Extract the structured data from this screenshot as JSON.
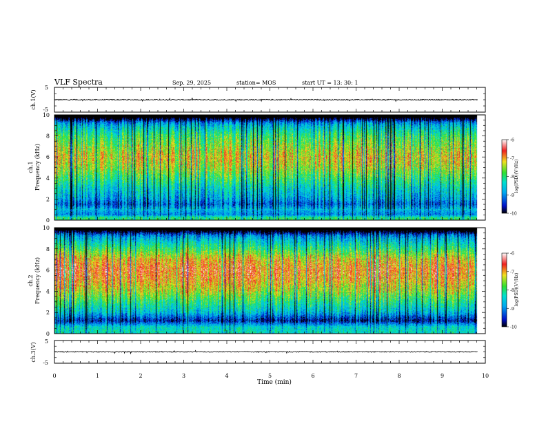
{
  "header": {
    "title": "VLF Spectra",
    "date": "Sep. 29, 2025",
    "station": "station= MOS",
    "start": "start  UT =   13: 30: 1"
  },
  "colors": {
    "black": "#000000",
    "blue": "#0010c8",
    "cyan": "#00d8e0",
    "green": "#30e030",
    "yellow": "#f0e020",
    "red": "#f02020",
    "background": "#ffffff"
  },
  "chart_data": [
    {
      "type": "line",
      "id": "ch1-waveform",
      "ylabel": "ch.1(V)",
      "ylim": [
        -5,
        5
      ],
      "yticks": [
        "5",
        "-5"
      ],
      "xlim": [
        0,
        10
      ],
      "series": [
        {
          "name": "ch.1 voltage",
          "mean": 0,
          "description_values": [
            0
          ]
        }
      ]
    },
    {
      "type": "heatmap",
      "id": "ch1-spectrogram",
      "ylabel_line1": "ch.1",
      "ylabel_line2": "Frequency (kHz)",
      "ylim": [
        0,
        10
      ],
      "yticks": [
        "0",
        "2",
        "4",
        "6",
        "8",
        "10"
      ],
      "xlim": [
        0,
        9.8
      ],
      "band_profile_log_psd": [
        {
          "f": 0.2,
          "v": -8.0
        },
        {
          "f": 0.5,
          "v": -9.0
        },
        {
          "f": 1.0,
          "v": -8.6
        },
        {
          "f": 1.5,
          "v": -9.2
        },
        {
          "f": 2.0,
          "v": -8.8
        },
        {
          "f": 3.0,
          "v": -8.4
        },
        {
          "f": 4.0,
          "v": -7.9
        },
        {
          "f": 5.0,
          "v": -7.4
        },
        {
          "f": 6.0,
          "v": -7.2
        },
        {
          "f": 7.0,
          "v": -7.5
        },
        {
          "f": 8.0,
          "v": -7.9
        },
        {
          "f": 9.0,
          "v": -8.6
        },
        {
          "f": 9.8,
          "v": -9.6
        }
      ],
      "colorbar": {
        "label": "log(PSD)(V²/Hz)",
        "min": -10,
        "max": -6,
        "ticks": [
          "-6",
          "-7",
          "-8",
          "-9",
          "-10"
        ]
      }
    },
    {
      "type": "heatmap",
      "id": "ch2-spectrogram",
      "ylabel_line1": "ch.2",
      "ylabel_line2": "Frequency (kHz)",
      "ylim": [
        0,
        10
      ],
      "yticks": [
        "0",
        "2",
        "4",
        "6",
        "8",
        "10"
      ],
      "xlim": [
        0,
        9.8
      ],
      "band_profile_log_psd": [
        {
          "f": 0.2,
          "v": -8.3
        },
        {
          "f": 0.6,
          "v": -8.4
        },
        {
          "f": 1.2,
          "v": -9.6
        },
        {
          "f": 2.0,
          "v": -8.6
        },
        {
          "f": 3.0,
          "v": -8.0
        },
        {
          "f": 4.0,
          "v": -7.4
        },
        {
          "f": 5.0,
          "v": -7.0
        },
        {
          "f": 6.0,
          "v": -6.8
        },
        {
          "f": 7.0,
          "v": -7.1
        },
        {
          "f": 8.0,
          "v": -7.9
        },
        {
          "f": 9.0,
          "v": -8.7
        },
        {
          "f": 9.8,
          "v": -9.6
        }
      ],
      "colorbar": {
        "label": "log(PSD)(V²/Hz)",
        "min": -10,
        "max": -6,
        "ticks": [
          "-6",
          "-7",
          "-8",
          "-9",
          "-10"
        ]
      }
    },
    {
      "type": "line",
      "id": "ch3-waveform",
      "ylabel": "ch.3(V)",
      "ylim": [
        -5,
        5
      ],
      "yticks": [
        "5",
        "-5"
      ],
      "xlim": [
        0,
        10
      ],
      "series": [
        {
          "name": "ch.3 voltage",
          "mean": 0,
          "description_values": [
            0
          ]
        }
      ]
    }
  ],
  "xaxis": {
    "label": "Time (min)",
    "ticks": [
      "0",
      "1",
      "2",
      "3",
      "4",
      "5",
      "6",
      "7",
      "8",
      "9",
      "10"
    ],
    "range": [
      0,
      10
    ]
  }
}
